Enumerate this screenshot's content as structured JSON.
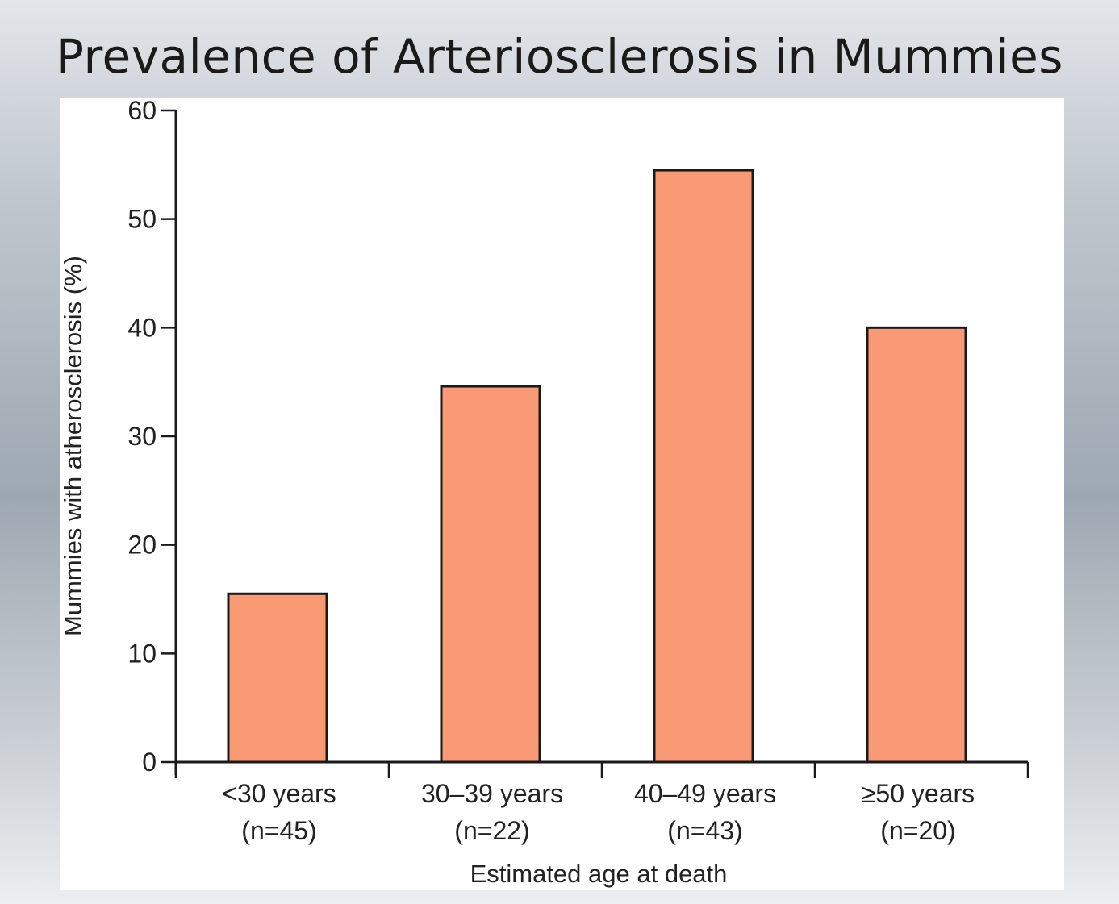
{
  "slide": {
    "title": "Prevalence of Arteriosclerosis in Mummies"
  },
  "colors": {
    "bar_fill": "#f99a74",
    "bar_stroke": "#1a1a1a",
    "axis": "#1a1a1a"
  },
  "chart_data": {
    "type": "bar",
    "categories": [
      {
        "label": "<30 years",
        "n": "(n=45)"
      },
      {
        "label": "30–39 years",
        "n": "(n=22)"
      },
      {
        "label": "40–49 years",
        "n": "(n=43)"
      },
      {
        "label": "≥50 years",
        "n": "(n=20)"
      }
    ],
    "values": [
      15.5,
      34.6,
      54.5,
      40
    ],
    "xlabel": "Estimated age at death",
    "ylabel": "Mummies with atherosclerosis (%)",
    "ylim": [
      0,
      60
    ],
    "yticks": [
      0,
      10,
      20,
      30,
      40,
      50,
      60
    ],
    "grid": false,
    "legend": "none"
  }
}
